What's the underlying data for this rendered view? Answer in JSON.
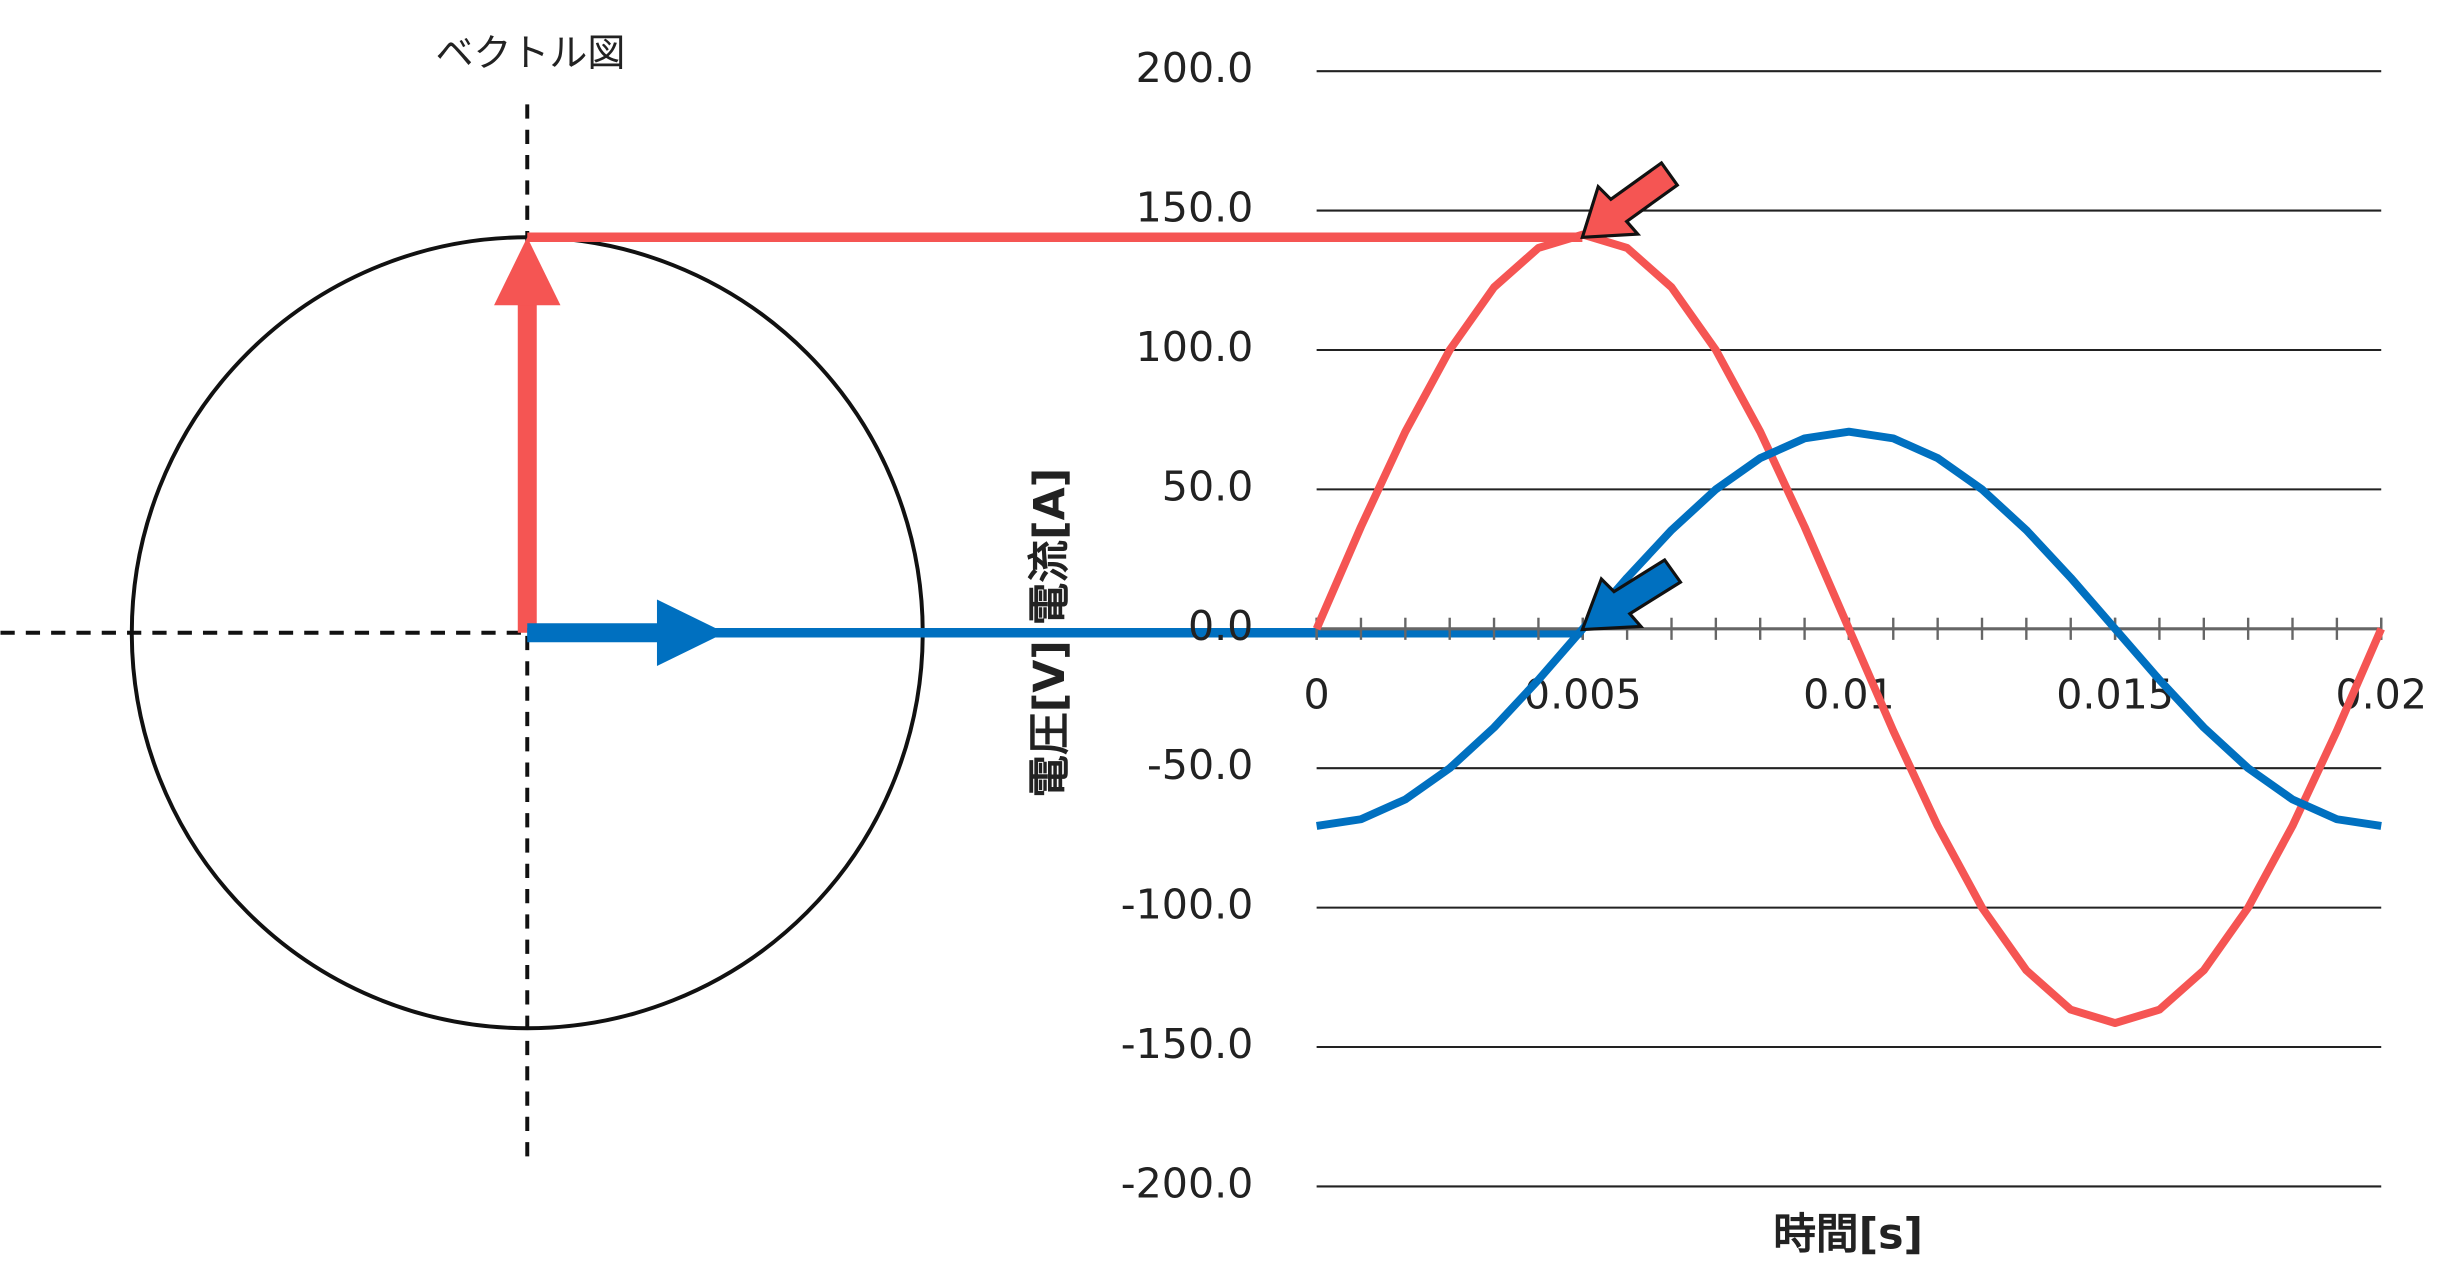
{
  "vector_title": "ベクトル図",
  "chart_data": {
    "type": "line",
    "ylabel": "電圧[V] 電流[A]",
    "xlabel": "時間[s]",
    "x": [
      0,
      0.000833,
      0.001667,
      0.0025,
      0.003333,
      0.004167,
      0.005,
      0.005833,
      0.006667,
      0.0075,
      0.008333,
      0.009167,
      0.01,
      0.010833,
      0.011667,
      0.0125,
      0.013333,
      0.014167,
      0.015,
      0.015833,
      0.016667,
      0.0175,
      0.018333,
      0.019167,
      0.02
    ],
    "series": [
      {
        "color": "#f55553",
        "values": [
          0,
          36.6,
          70.7,
          100.0,
          122.5,
          136.6,
          141.4,
          136.6,
          122.5,
          100.0,
          70.7,
          36.6,
          0,
          -36.6,
          -70.7,
          -100.0,
          -122.5,
          -136.6,
          -141.4,
          -136.6,
          -122.5,
          -100.0,
          -70.7,
          -36.6,
          0
        ]
      },
      {
        "color": "#0070c0",
        "values": [
          -70.7,
          -68.3,
          -61.2,
          -50.0,
          -35.4,
          -18.3,
          0,
          18.3,
          35.4,
          50.0,
          61.2,
          68.3,
          70.7,
          68.3,
          61.2,
          50.0,
          35.4,
          18.3,
          0,
          -18.3,
          -35.4,
          -50.0,
          -61.2,
          -68.3,
          -70.7
        ]
      }
    ],
    "xlim": [
      0,
      0.02
    ],
    "xticks": [
      0,
      0.005,
      0.01,
      0.015,
      0.02
    ],
    "ylim": [
      -200,
      200
    ],
    "yticks": [
      {
        "value": 200,
        "label": "200.0"
      },
      {
        "value": 150,
        "label": "150.0"
      },
      {
        "value": 100,
        "label": "100.0"
      },
      {
        "value": 50,
        "label": "50.0"
      },
      {
        "value": 0,
        "label": "0.0"
      },
      {
        "value": -50,
        "label": "-50.0"
      },
      {
        "value": -100,
        "label": "-100.0"
      },
      {
        "value": -150,
        "label": "-150.0"
      },
      {
        "value": -200,
        "label": "-200.0"
      }
    ],
    "grid": true
  }
}
